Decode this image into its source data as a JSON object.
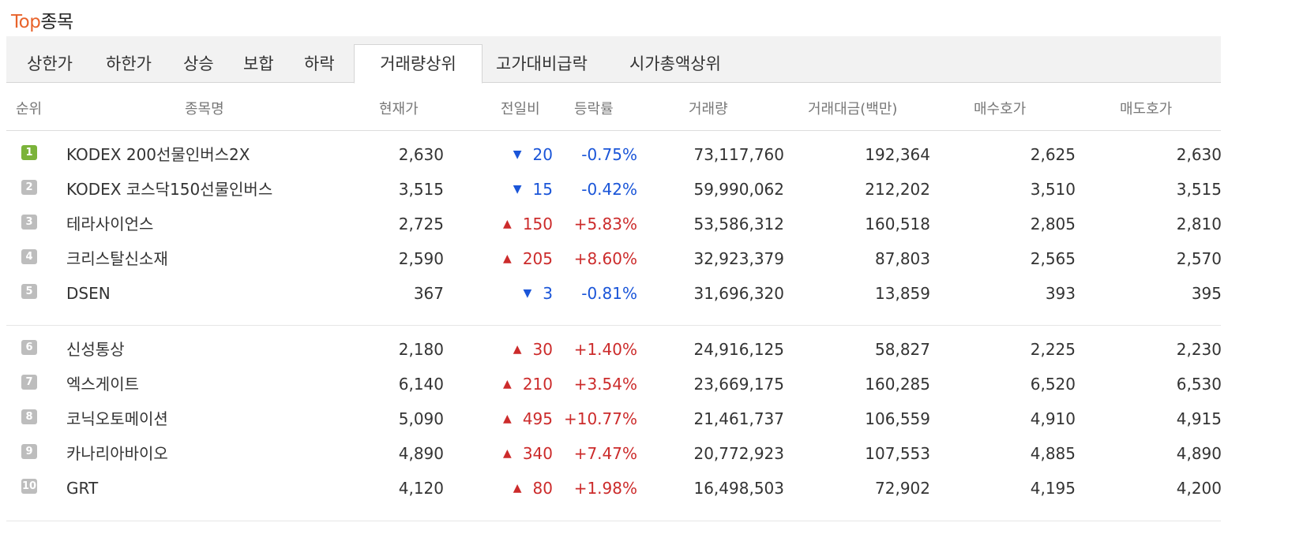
{
  "title": {
    "accent": "Top",
    "rest": "종목"
  },
  "tabs": [
    {
      "label": "상한가",
      "active": false
    },
    {
      "label": "하한가",
      "active": false
    },
    {
      "label": "상승",
      "active": false
    },
    {
      "label": "보합",
      "active": false
    },
    {
      "label": "하락",
      "active": false
    },
    {
      "label": "거래량상위",
      "active": true
    },
    {
      "label": "고가대비급락",
      "active": false
    },
    {
      "label": "시가총액상위",
      "active": false
    }
  ],
  "columns": {
    "rank": "순위",
    "name": "종목명",
    "price": "현재가",
    "change": "전일비",
    "rate": "등락률",
    "volume": "거래량",
    "amount": "거래대금(백만)",
    "bid": "매수호가",
    "ask": "매도호가"
  },
  "rows": [
    {
      "rank": "1",
      "name": "KODEX 200선물인버스2X",
      "price": "2,630",
      "dir": "down",
      "change": "20",
      "rate": "-0.75%",
      "volume": "73,117,760",
      "amount": "192,364",
      "bid": "2,625",
      "ask": "2,630"
    },
    {
      "rank": "2",
      "name": "KODEX 코스닥150선물인버스",
      "price": "3,515",
      "dir": "down",
      "change": "15",
      "rate": "-0.42%",
      "volume": "59,990,062",
      "amount": "212,202",
      "bid": "3,510",
      "ask": "3,515"
    },
    {
      "rank": "3",
      "name": "테라사이언스",
      "price": "2,725",
      "dir": "up",
      "change": "150",
      "rate": "+5.83%",
      "volume": "53,586,312",
      "amount": "160,518",
      "bid": "2,805",
      "ask": "2,810"
    },
    {
      "rank": "4",
      "name": "크리스탈신소재",
      "price": "2,590",
      "dir": "up",
      "change": "205",
      "rate": "+8.60%",
      "volume": "32,923,379",
      "amount": "87,803",
      "bid": "2,565",
      "ask": "2,570"
    },
    {
      "rank": "5",
      "name": "DSEN",
      "price": "367",
      "dir": "down",
      "change": "3",
      "rate": "-0.81%",
      "volume": "31,696,320",
      "amount": "13,859",
      "bid": "393",
      "ask": "395"
    },
    {
      "rank": "6",
      "name": "신성통상",
      "price": "2,180",
      "dir": "up",
      "change": "30",
      "rate": "+1.40%",
      "volume": "24,916,125",
      "amount": "58,827",
      "bid": "2,225",
      "ask": "2,230"
    },
    {
      "rank": "7",
      "name": "엑스게이트",
      "price": "6,140",
      "dir": "up",
      "change": "210",
      "rate": "+3.54%",
      "volume": "23,669,175",
      "amount": "160,285",
      "bid": "6,520",
      "ask": "6,530"
    },
    {
      "rank": "8",
      "name": "코닉오토메이션",
      "price": "5,090",
      "dir": "up",
      "change": "495",
      "rate": "+10.77%",
      "volume": "21,461,737",
      "amount": "106,559",
      "bid": "4,910",
      "ask": "4,915"
    },
    {
      "rank": "9",
      "name": "카나리아바이오",
      "price": "4,890",
      "dir": "up",
      "change": "340",
      "rate": "+7.47%",
      "volume": "20,772,923",
      "amount": "107,553",
      "bid": "4,885",
      "ask": "4,890"
    },
    {
      "rank": "10",
      "name": "GRT",
      "price": "4,120",
      "dir": "up",
      "change": "80",
      "rate": "+1.98%",
      "volume": "16,498,503",
      "amount": "72,902",
      "bid": "4,195",
      "ask": "4,200"
    }
  ],
  "colors": {
    "accent": "#e8632b",
    "up": "#cc2b2b",
    "down": "#1a55d8",
    "rank_first": "#7bb33a",
    "rank_other": "#bdbdbd"
  }
}
